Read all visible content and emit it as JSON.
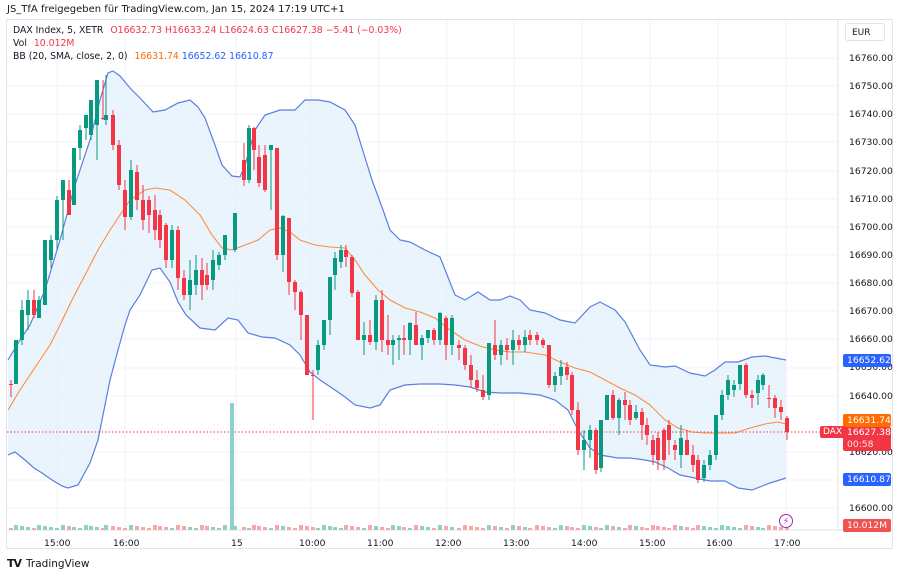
{
  "header": {
    "shared_by": "JS_TfA freigegeben für TradingView.com, Jan 15, 2024 17:19 UTC+1"
  },
  "legend": {
    "symbol": "DAX Index, 5, XETR",
    "open": "O16632.73",
    "high": "H16633.24",
    "low": "L16624.63",
    "close": "C16627.38",
    "change": "−5.41 (−0.03%)",
    "vol_label": "Vol",
    "vol_value": "10.012M",
    "bb_label": "BB (20, SMA, close, 2, 0)",
    "bb_basis": "16631.74",
    "bb_upper": "16652.62",
    "bb_lower": "16610.87"
  },
  "price_axis": {
    "currency": "EUR",
    "ticks": [
      "16760.00",
      "16750.00",
      "16740.00",
      "16730.00",
      "16720.00",
      "16710.00",
      "16700.00",
      "16690.00",
      "16680.00",
      "16670.00",
      "16660.00",
      "16650.00",
      "16640.00",
      "16620.00",
      "16610.00",
      "16600.00"
    ],
    "tags": {
      "upper": "16652.62",
      "basis": "16631.74",
      "close": "16627.38",
      "countdown": "00:58",
      "lower": "16610.87",
      "volume": "10.012M",
      "symbol": "DAX"
    }
  },
  "time_axis": {
    "ticks": [
      "15:00",
      "16:00",
      "15",
      "10:00",
      "11:00",
      "12:00",
      "13:00",
      "14:00",
      "15:00",
      "16:00",
      "17:00"
    ]
  },
  "footer": {
    "brand": "TradingView"
  },
  "colors": {
    "up": "#089981",
    "down": "#f23645",
    "bb_band": "#2962ff",
    "bb_basis": "#ff6d00",
    "bb_fill": "#e3f0fc",
    "vol_up": "#8fd1c7",
    "vol_down": "#f7a9a7"
  },
  "chart_data": {
    "type": "candlestick",
    "title": "DAX Index, 5, XETR",
    "xlabel": "",
    "ylabel": "EUR",
    "ylim": [
      16595,
      16765
    ],
    "x_ticks": [
      "15:00",
      "16:00",
      "15",
      "10:00",
      "11:00",
      "12:00",
      "13:00",
      "14:00",
      "15:00",
      "16:00",
      "17:00"
    ],
    "last_candle": {
      "open": 16632.73,
      "high": 16633.24,
      "low": 16624.63,
      "close": 16627.38
    },
    "change": -5.41,
    "change_pct": -0.03,
    "volume_last": "10.012M",
    "bollinger_bands": {
      "length": 20,
      "type": "SMA",
      "source": "close",
      "mult": 2,
      "offset": 0,
      "basis": 16631.74,
      "upper": 16652.62,
      "lower": 16610.87
    },
    "grid": true,
    "annotations": [
      "Large volume spike at session open (Jan 15)"
    ]
  }
}
